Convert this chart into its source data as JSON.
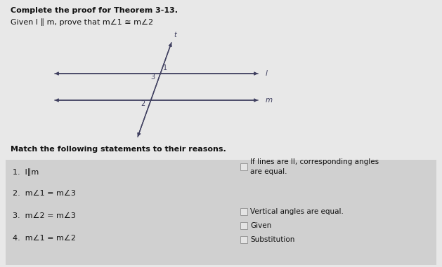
{
  "title": "Complete the proof for Theorem 3-13.",
  "given_text": "Given l ∥ m, prove that m∠1 ≅ m∠2",
  "match_header": "Match the following statements to their reasons.",
  "statements": [
    "1.  l∥m",
    "2.  m∠1 = m∠3",
    "3.  m∠2 = m∠3",
    "4.  m∠1 = m∠2"
  ],
  "reasons": [
    "If lines are ll, corresponding angles\nare equal.",
    "Vertical angles are equal.",
    "Given",
    "Substitution"
  ],
  "bg_color": "#e8e8e8",
  "panel_color": "#d0d0d0",
  "text_color": "#111111",
  "line_color": "#404060",
  "label_color": "#404060"
}
